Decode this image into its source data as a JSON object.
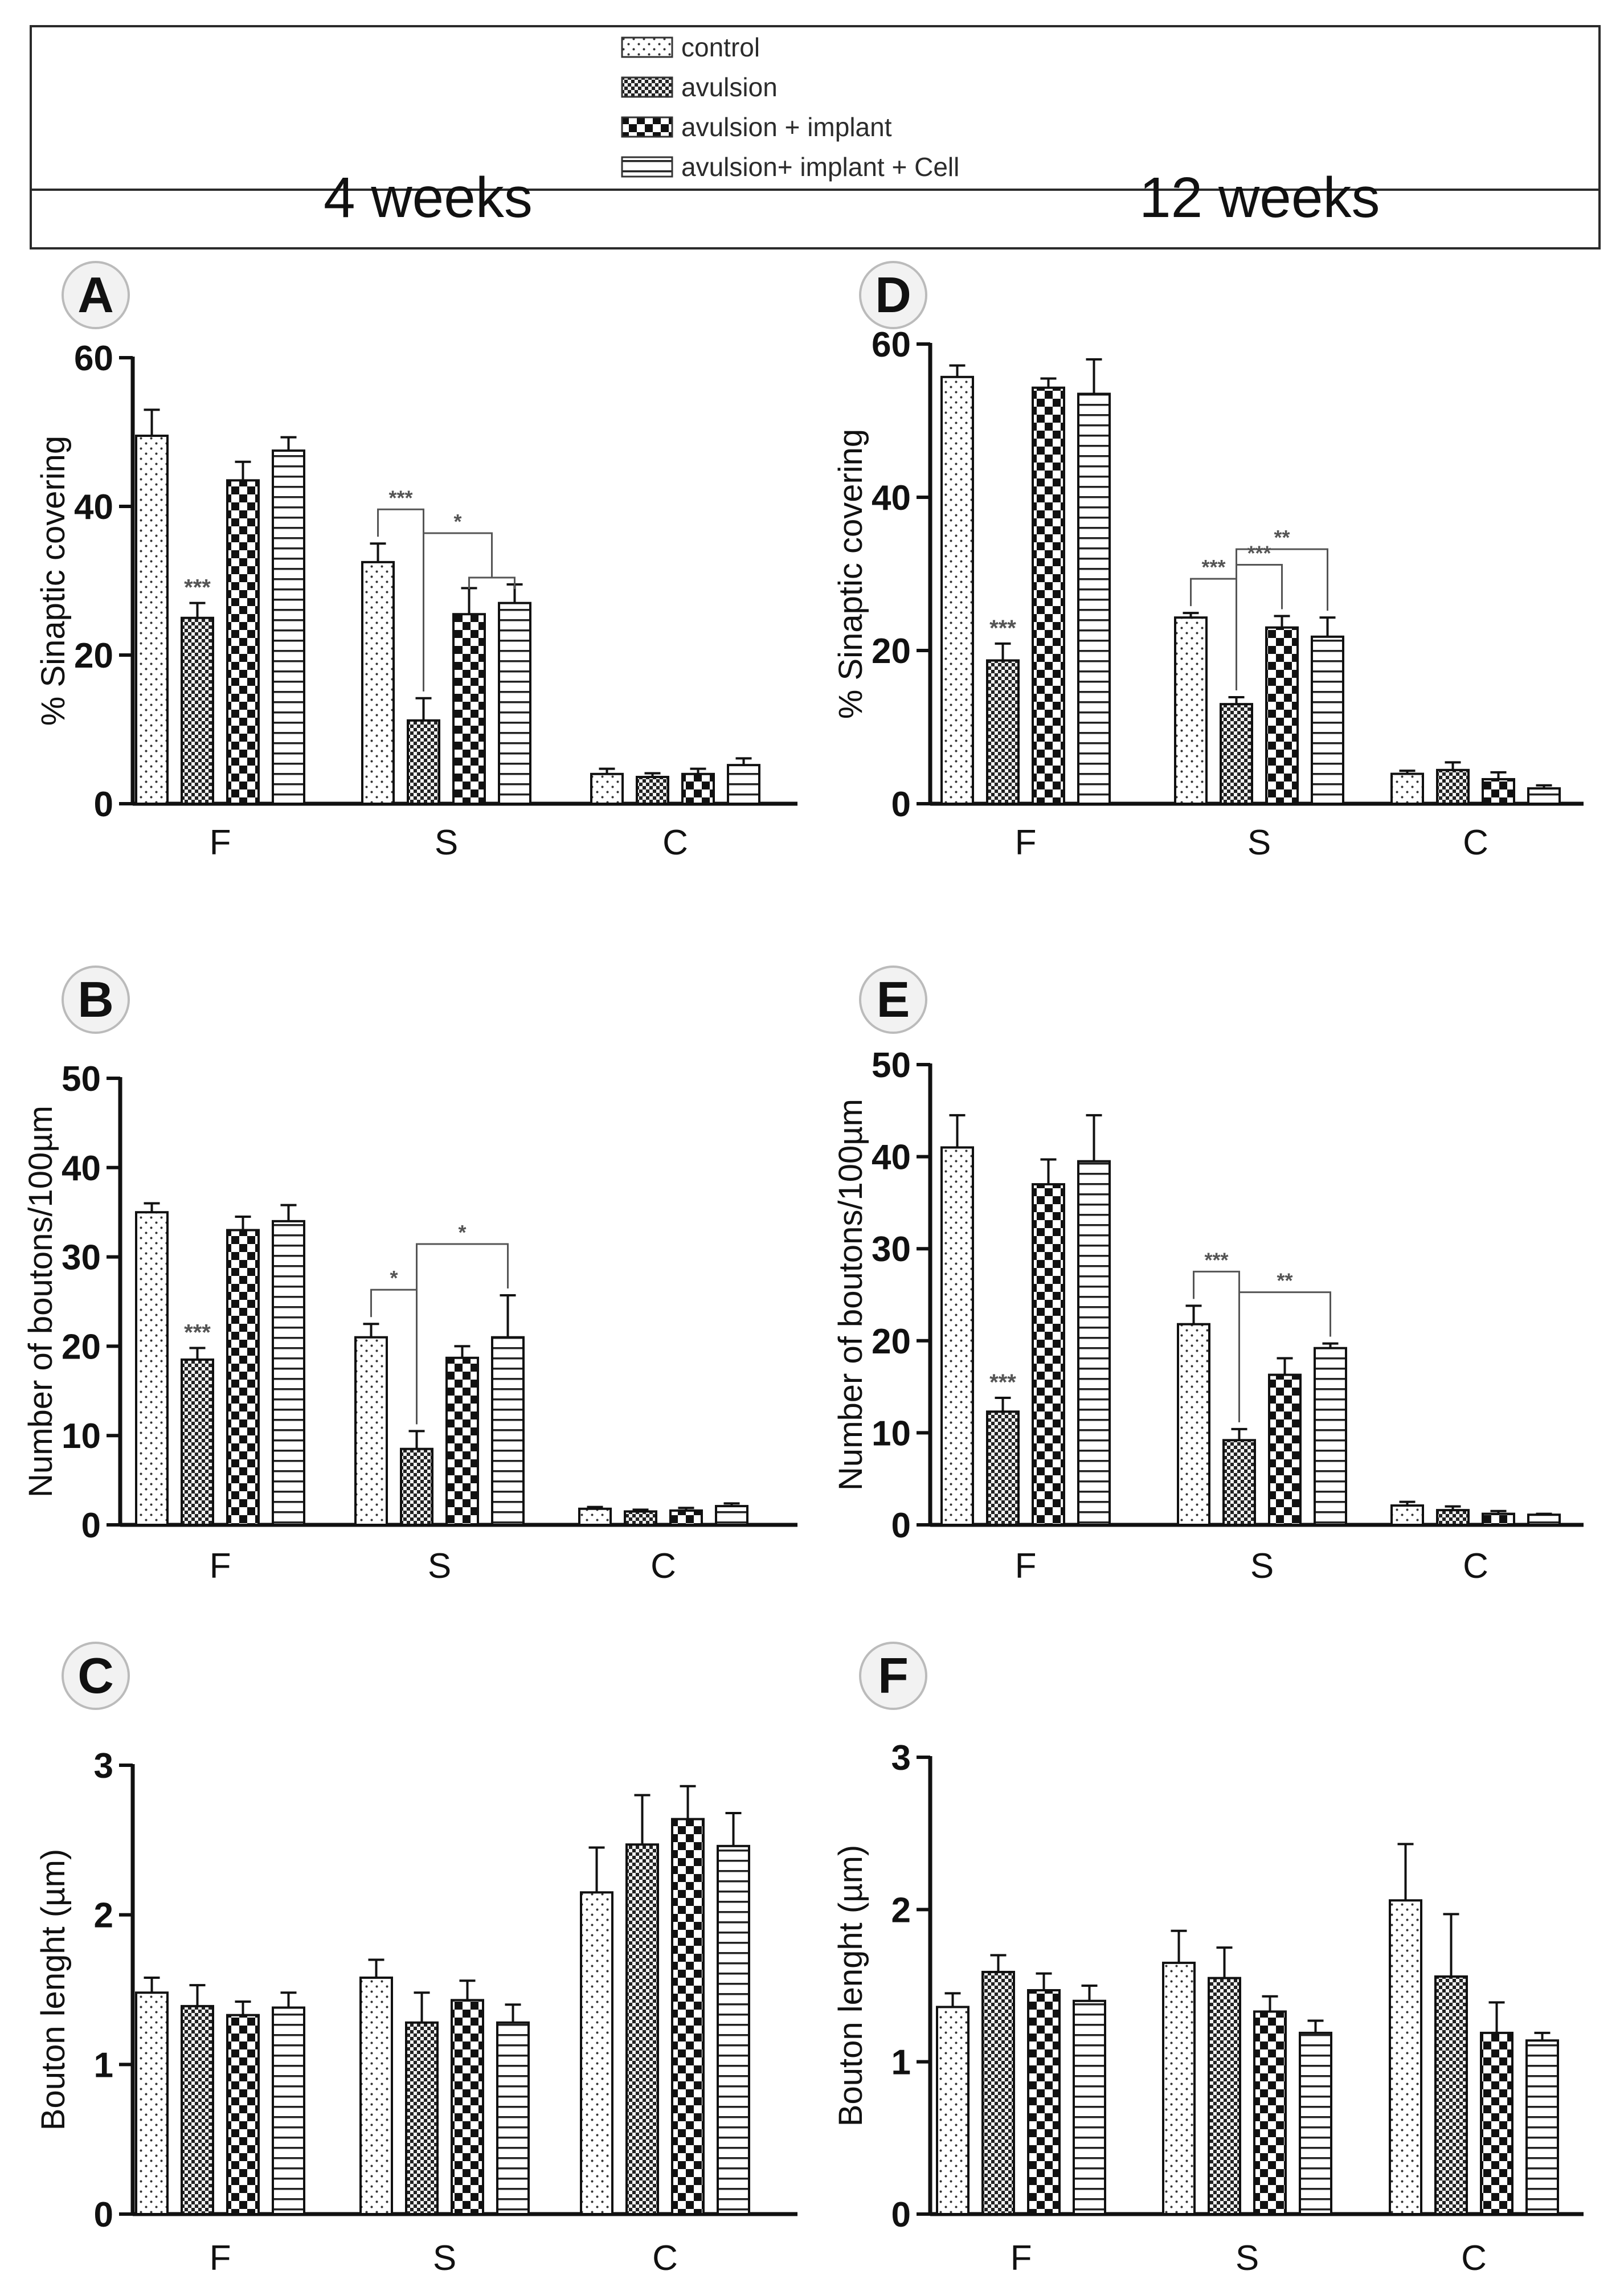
{
  "legend": {
    "items": [
      {
        "label": "control",
        "pattern": "dots"
      },
      {
        "label": "avulsion",
        "pattern": "fine-check"
      },
      {
        "label": "avulsion + implant",
        "pattern": "check"
      },
      {
        "label": "avulsion+ implant + Cell",
        "pattern": "hlines"
      }
    ]
  },
  "header": {
    "left_week": "4 weeks",
    "right_week": "12 weeks"
  },
  "colors": {
    "ink": "#111111",
    "annotation": "#555555",
    "badge_fill": "#f2f2f2"
  },
  "chart_data": [
    {
      "panel": "A",
      "type": "bar",
      "ylabel": "% Sinaptic covering",
      "ylim": [
        0,
        60
      ],
      "yticks": [
        0,
        20,
        40,
        60
      ],
      "categories": [
        "F",
        "S",
        "C"
      ],
      "series": [
        {
          "name": "control",
          "values": [
            49.5,
            32.5,
            4.0
          ],
          "errors": [
            3.5,
            2.5,
            0.7
          ]
        },
        {
          "name": "avulsion",
          "values": [
            25.0,
            11.2,
            3.6
          ],
          "errors": [
            2.0,
            3.0,
            0.5
          ]
        },
        {
          "name": "avulsion + implant",
          "values": [
            43.5,
            25.5,
            4.0
          ],
          "errors": [
            2.5,
            3.5,
            0.7
          ]
        },
        {
          "name": "avulsion+ implant + Cell",
          "values": [
            47.5,
            27.0,
            5.2
          ],
          "errors": [
            1.8,
            2.5,
            0.9
          ]
        }
      ],
      "annotations": [
        {
          "text": "***",
          "type": "star",
          "category": 0,
          "series": 1
        },
        {
          "text": "***",
          "type": "bracket",
          "category": 1,
          "from": [
            0
          ],
          "to": [
            1
          ]
        },
        {
          "text": "*",
          "type": "bracket",
          "category": 1,
          "from": [
            1
          ],
          "to": [
            2,
            3
          ]
        }
      ]
    },
    {
      "panel": "B",
      "type": "bar",
      "ylabel": "Number of boutons/100µm",
      "ylim": [
        0,
        50
      ],
      "yticks": [
        0,
        10,
        20,
        30,
        40,
        50
      ],
      "categories": [
        "F",
        "S",
        "C"
      ],
      "series": [
        {
          "name": "control",
          "values": [
            35.0,
            21.0,
            1.8
          ],
          "errors": [
            1.0,
            1.5,
            0.2
          ]
        },
        {
          "name": "avulsion",
          "values": [
            18.5,
            8.5,
            1.5
          ],
          "errors": [
            1.3,
            2.0,
            0.2
          ]
        },
        {
          "name": "avulsion + implant",
          "values": [
            33.0,
            18.7,
            1.6
          ],
          "errors": [
            1.5,
            1.3,
            0.3
          ]
        },
        {
          "name": "avulsion+ implant + Cell",
          "values": [
            34.0,
            21.0,
            2.1
          ],
          "errors": [
            1.8,
            4.7,
            0.3
          ]
        }
      ],
      "annotations": [
        {
          "text": "***",
          "type": "star",
          "category": 0,
          "series": 1
        },
        {
          "text": "*",
          "type": "bracket",
          "category": 1,
          "from": [
            0
          ],
          "to": [
            1
          ]
        },
        {
          "text": "*",
          "type": "bracket",
          "category": 1,
          "from": [
            1
          ],
          "to": [
            3
          ]
        }
      ]
    },
    {
      "panel": "C",
      "type": "bar",
      "ylabel": "Bouton lenght (µm)",
      "ylim": [
        0,
        3
      ],
      "yticks": [
        0,
        1,
        2,
        3
      ],
      "categories": [
        "F",
        "S",
        "C"
      ],
      "series": [
        {
          "name": "control",
          "values": [
            1.48,
            1.58,
            2.15
          ],
          "errors": [
            0.1,
            0.12,
            0.3
          ]
        },
        {
          "name": "avulsion",
          "values": [
            1.39,
            1.28,
            2.47
          ],
          "errors": [
            0.14,
            0.2,
            0.33
          ]
        },
        {
          "name": "avulsion + implant",
          "values": [
            1.33,
            1.43,
            2.64
          ],
          "errors": [
            0.09,
            0.13,
            0.22
          ]
        },
        {
          "name": "avulsion+ implant + Cell",
          "values": [
            1.38,
            1.28,
            2.46
          ],
          "errors": [
            0.1,
            0.12,
            0.22
          ]
        }
      ],
      "annotations": []
    },
    {
      "panel": "D",
      "type": "bar",
      "ylabel": "% Sinaptic covering",
      "ylim": [
        0,
        60
      ],
      "yticks": [
        0,
        20,
        40,
        60
      ],
      "categories": [
        "F",
        "S",
        "C"
      ],
      "series": [
        {
          "name": "control",
          "values": [
            55.7,
            24.3,
            3.9
          ],
          "errors": [
            1.5,
            0.6,
            0.4
          ]
        },
        {
          "name": "avulsion",
          "values": [
            18.7,
            13.0,
            4.4
          ],
          "errors": [
            2.2,
            0.9,
            1.0
          ]
        },
        {
          "name": "avulsion + implant",
          "values": [
            54.3,
            23.0,
            3.2
          ],
          "errors": [
            1.2,
            1.5,
            0.9
          ]
        },
        {
          "name": "avulsion+ implant + Cell",
          "values": [
            53.5,
            21.8,
            2.0
          ],
          "errors": [
            4.5,
            2.5,
            0.4
          ]
        }
      ],
      "annotations": [
        {
          "text": "***",
          "type": "star",
          "category": 0,
          "series": 1
        },
        {
          "text": "***",
          "type": "bracket",
          "category": 1,
          "from": [
            0
          ],
          "to": [
            1
          ]
        },
        {
          "text": "***",
          "type": "bracket",
          "category": 1,
          "from": [
            1
          ],
          "to": [
            2
          ]
        },
        {
          "text": "**",
          "type": "bracket",
          "category": 1,
          "from": [
            1
          ],
          "to": [
            3
          ]
        }
      ]
    },
    {
      "panel": "E",
      "type": "bar",
      "ylabel": "Number of boutons/100µm",
      "ylim": [
        0,
        50
      ],
      "yticks": [
        0,
        10,
        20,
        30,
        40,
        50
      ],
      "categories": [
        "F",
        "S",
        "C"
      ],
      "series": [
        {
          "name": "control",
          "values": [
            41.0,
            21.8,
            2.1
          ],
          "errors": [
            3.5,
            2.0,
            0.4
          ]
        },
        {
          "name": "avulsion",
          "values": [
            12.3,
            9.2,
            1.6
          ],
          "errors": [
            1.5,
            1.2,
            0.4
          ]
        },
        {
          "name": "avulsion + implant",
          "values": [
            37.0,
            16.3,
            1.2
          ],
          "errors": [
            2.7,
            1.8,
            0.3
          ]
        },
        {
          "name": "avulsion+ implant + Cell",
          "values": [
            39.5,
            19.2,
            1.1
          ],
          "errors": [
            5.0,
            0.5,
            0.1
          ]
        }
      ],
      "annotations": [
        {
          "text": "***",
          "type": "star",
          "category": 0,
          "series": 1
        },
        {
          "text": "***",
          "type": "bracket",
          "category": 1,
          "from": [
            0
          ],
          "to": [
            1
          ]
        },
        {
          "text": "**",
          "type": "bracket",
          "category": 1,
          "from": [
            1
          ],
          "to": [
            3
          ]
        }
      ]
    },
    {
      "panel": "F",
      "type": "bar",
      "ylabel": "Bouton lenght (µm)",
      "ylim": [
        0,
        3
      ],
      "yticks": [
        0,
        1,
        2,
        3
      ],
      "categories": [
        "F",
        "S",
        "C"
      ],
      "series": [
        {
          "name": "control",
          "values": [
            1.36,
            1.65,
            2.06
          ],
          "errors": [
            0.09,
            0.21,
            0.37
          ]
        },
        {
          "name": "avulsion",
          "values": [
            1.59,
            1.55,
            1.56
          ],
          "errors": [
            0.11,
            0.2,
            0.41
          ]
        },
        {
          "name": "avulsion + implant",
          "values": [
            1.47,
            1.33,
            1.19
          ],
          "errors": [
            0.11,
            0.1,
            0.2
          ]
        },
        {
          "name": "avulsion+ implant + Cell",
          "values": [
            1.4,
            1.19,
            1.14
          ],
          "errors": [
            0.1,
            0.08,
            0.05
          ]
        }
      ],
      "annotations": []
    }
  ]
}
